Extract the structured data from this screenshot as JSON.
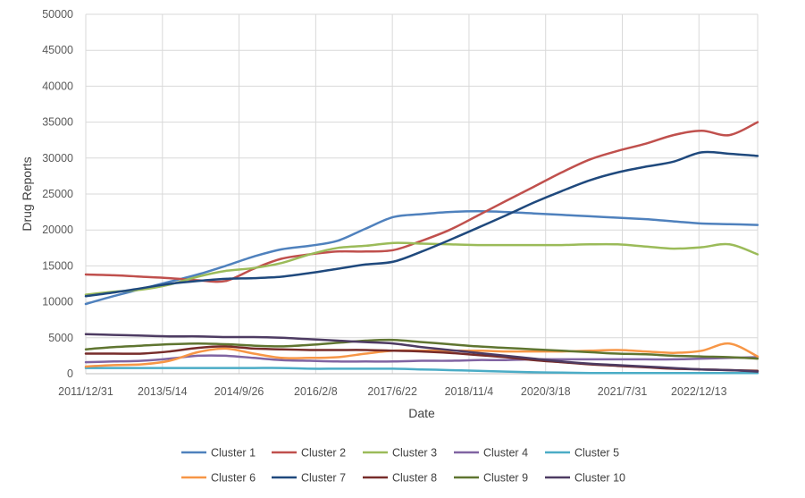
{
  "chart_data": {
    "type": "line",
    "title": "",
    "xlabel": "Date",
    "ylabel": "Drug Reports",
    "ylim": [
      0,
      50000
    ],
    "yticks": [
      0,
      5000,
      10000,
      15000,
      20000,
      25000,
      30000,
      35000,
      40000,
      45000,
      50000
    ],
    "xtick_labels": [
      "2011/12/31",
      "2013/5/14",
      "2014/9/26",
      "2016/2/8",
      "2017/6/22",
      "2018/11/4",
      "2020/3/18",
      "2021/7/31",
      "2022/12/13"
    ],
    "grid": true,
    "legend": "bottom",
    "x": [
      "2011/12/31",
      "2012/6/30",
      "2012/12/31",
      "2013/6/30",
      "2013/12/31",
      "2014/6/30",
      "2014/12/31",
      "2015/6/30",
      "2015/12/31",
      "2016/6/30",
      "2016/12/31",
      "2017/6/30",
      "2017/12/31",
      "2018/6/30",
      "2018/12/31",
      "2019/6/30",
      "2019/12/31",
      "2020/6/30",
      "2020/12/31",
      "2021/6/30",
      "2021/12/31",
      "2022/6/30",
      "2022/12/31",
      "2023/6/30",
      "2023/12/31"
    ],
    "series": [
      {
        "name": "Cluster 1",
        "color": "#4f81bd",
        "values": [
          9700,
          10800,
          11800,
          12800,
          13800,
          15000,
          16300,
          17300,
          17800,
          18500,
          20200,
          21800,
          22200,
          22500,
          22600,
          22500,
          22300,
          22100,
          21900,
          21700,
          21500,
          21200,
          20900,
          20800,
          20700
        ]
      },
      {
        "name": "Cluster 2",
        "color": "#c0504d",
        "values": [
          13800,
          13700,
          13500,
          13300,
          13000,
          12900,
          14600,
          16000,
          16600,
          17000,
          17000,
          17200,
          18500,
          20000,
          22000,
          24000,
          26000,
          28000,
          29800,
          31000,
          32000,
          33200,
          33800,
          33200,
          35000
        ]
      },
      {
        "name": "Cluster 3",
        "color": "#9bbb59",
        "values": [
          11000,
          11400,
          11700,
          12400,
          13500,
          14300,
          14700,
          15400,
          16600,
          17500,
          17800,
          18200,
          18100,
          18000,
          17900,
          17900,
          17900,
          17900,
          18000,
          18000,
          17700,
          17400,
          17600,
          18000,
          16600
        ]
      },
      {
        "name": "Cluster 4",
        "color": "#8064a2",
        "values": [
          1600,
          1700,
          1800,
          2100,
          2500,
          2500,
          2200,
          1900,
          1800,
          1700,
          1700,
          1700,
          1800,
          1800,
          1900,
          1900,
          2000,
          2000,
          2000,
          2000,
          2000,
          2000,
          2100,
          2200,
          2300
        ]
      },
      {
        "name": "Cluster 5",
        "color": "#4bacc6",
        "values": [
          800,
          800,
          800,
          800,
          800,
          800,
          800,
          800,
          700,
          700,
          700,
          700,
          600,
          500,
          400,
          300,
          200,
          150,
          100,
          100,
          100,
          100,
          100,
          100,
          100
        ]
      },
      {
        "name": "Cluster 6",
        "color": "#f79646",
        "values": [
          1000,
          1200,
          1300,
          1800,
          3000,
          3500,
          2800,
          2200,
          2200,
          2300,
          2800,
          3200,
          3200,
          3200,
          3200,
          3100,
          3100,
          3100,
          3200,
          3300,
          3100,
          2900,
          3200,
          4200,
          2400
        ]
      },
      {
        "name": "Cluster 7",
        "color": "#1f497d",
        "values": [
          10800,
          11300,
          11900,
          12500,
          12900,
          13200,
          13300,
          13500,
          14000,
          14600,
          15200,
          15600,
          17000,
          18600,
          20300,
          22000,
          23800,
          25400,
          26900,
          28000,
          28800,
          29500,
          30800,
          30600,
          30300
        ]
      },
      {
        "name": "Cluster 8",
        "color": "#772c2a",
        "values": [
          2800,
          2800,
          2800,
          3100,
          3600,
          3800,
          3500,
          3400,
          3300,
          3300,
          3300,
          3200,
          3100,
          2900,
          2600,
          2300,
          1900,
          1600,
          1300,
          1100,
          900,
          700,
          600,
          500,
          400
        ]
      },
      {
        "name": "Cluster 9",
        "color": "#5f7530",
        "values": [
          3400,
          3700,
          3900,
          4100,
          4200,
          4100,
          3900,
          3800,
          4000,
          4300,
          4600,
          4700,
          4400,
          4100,
          3800,
          3600,
          3400,
          3200,
          3000,
          2800,
          2700,
          2500,
          2400,
          2300,
          2100
        ]
      },
      {
        "name": "Cluster 10",
        "color": "#4d3b62",
        "values": [
          5500,
          5400,
          5300,
          5200,
          5200,
          5100,
          5100,
          5000,
          4800,
          4600,
          4400,
          4200,
          3700,
          3300,
          2900,
          2500,
          2100,
          1700,
          1400,
          1200,
          1000,
          800,
          600,
          500,
          300
        ]
      }
    ]
  }
}
